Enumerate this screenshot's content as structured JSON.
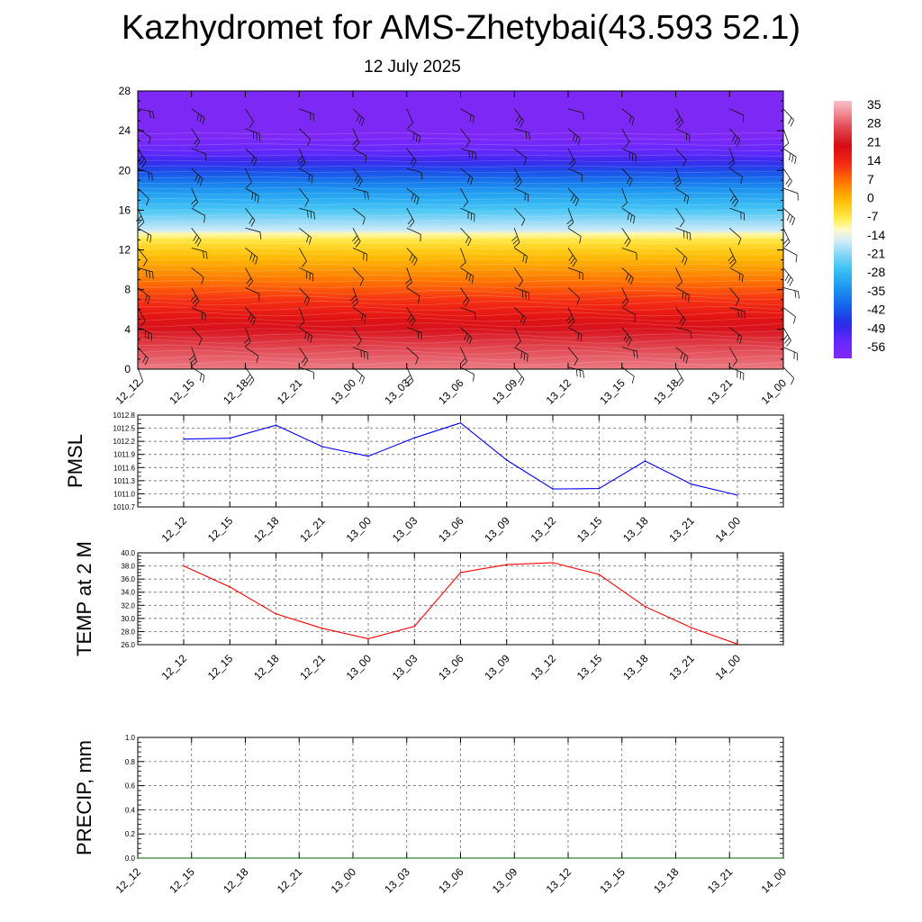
{
  "header": {
    "title": "Kazhydromet for AMS-Zhetybai(43.593 52.1)",
    "date": "12 July 2025"
  },
  "chart_data": [
    {
      "id": "cross-section",
      "type": "heatmap",
      "title": "Kazhydromet for AMS-Zhetybai(43.593 52.1)",
      "subtitle": "12 July 2025",
      "x_tick_labels": [
        "12_12",
        "12_15",
        "12_18",
        "12_21",
        "13_00",
        "13_03",
        "13_06",
        "13_09",
        "13_12",
        "13_15",
        "13_18",
        "13_21",
        "14_00"
      ],
      "y_ticks": [
        0,
        4,
        8,
        12,
        16,
        20,
        24,
        28
      ],
      "ylim": [
        0,
        28
      ],
      "colorbar": {
        "labels": [
          "35",
          "28",
          "21",
          "14",
          "7",
          "0",
          "-7",
          "-14",
          "-21",
          "-28",
          "-35",
          "-42",
          "-49",
          "-56"
        ],
        "range": [
          -60,
          38
        ]
      },
      "temperature_profile": [
        {
          "level": 0,
          "value": 32
        },
        {
          "level": 1,
          "value": 30
        },
        {
          "level": 2,
          "value": 28
        },
        {
          "level": 3,
          "value": 25
        },
        {
          "level": 4,
          "value": 22
        },
        {
          "level": 5,
          "value": 19
        },
        {
          "level": 6,
          "value": 16
        },
        {
          "level": 7,
          "value": 13
        },
        {
          "level": 8,
          "value": 10
        },
        {
          "level": 9,
          "value": 7
        },
        {
          "level": 10,
          "value": 4
        },
        {
          "level": 11,
          "value": 1
        },
        {
          "level": 12,
          "value": -2
        },
        {
          "level": 13,
          "value": -6
        },
        {
          "level": 13.6,
          "value": -10
        },
        {
          "level": 14,
          "value": -16
        },
        {
          "level": 15,
          "value": -20
        },
        {
          "level": 16,
          "value": -25
        },
        {
          "level": 17,
          "value": -29
        },
        {
          "level": 18,
          "value": -33
        },
        {
          "level": 19,
          "value": -38
        },
        {
          "level": 20,
          "value": -43
        },
        {
          "level": 21,
          "value": -49
        },
        {
          "level": 21.6,
          "value": -52
        },
        {
          "level": 22.5,
          "value": -56
        },
        {
          "level": 23.5,
          "value": -59
        },
        {
          "level": 28,
          "value": -59
        }
      ],
      "wind_barbs": "shown"
    },
    {
      "id": "pmsl",
      "type": "line",
      "ylabel": "PMSL",
      "categories": [
        "12_12",
        "12_15",
        "12_18",
        "12_21",
        "13_00",
        "13_03",
        "13_06",
        "13_09",
        "13_12",
        "13_15",
        "13_18",
        "13_21",
        "14_00"
      ],
      "values": [
        1012.25,
        1012.27,
        1012.57,
        1012.08,
        1011.86,
        1012.28,
        1012.62,
        1011.77,
        1011.11,
        1011.12,
        1011.75,
        1011.22,
        1010.97
      ],
      "ylim": [
        1010.7,
        1012.8
      ],
      "y_tick_labels": [
        "1012.8",
        "1012.5",
        "1012.2",
        "1011.9",
        "1011.6",
        "1011.3",
        "1011.0",
        "1010.7"
      ],
      "color": "#0000ff",
      "grid": true
    },
    {
      "id": "temp2m",
      "type": "line",
      "ylabel": "TEMP at 2 M",
      "categories": [
        "12_12",
        "12_15",
        "12_18",
        "12_21",
        "13_00",
        "13_03",
        "13_06",
        "13_09",
        "13_12",
        "13_15",
        "13_18",
        "13_21",
        "14_00"
      ],
      "values": [
        38.0,
        34.8,
        30.7,
        28.5,
        26.9,
        28.8,
        37.0,
        38.2,
        38.5,
        36.7,
        31.8,
        28.6,
        26.1
      ],
      "ylim": [
        26.0,
        40.0
      ],
      "y_tick_labels": [
        "40.0",
        "38.0",
        "36.0",
        "34.0",
        "32.0",
        "30.0",
        "28.0",
        "26.0"
      ],
      "color": "#ff0000",
      "grid": true
    },
    {
      "id": "precip",
      "type": "line",
      "ylabel": "PRECIP, mm",
      "x_tick_labels": [
        "12_12",
        "12_15",
        "12_18",
        "12_21",
        "13_00",
        "13_03",
        "13_06",
        "13_09",
        "13_12",
        "13_15",
        "13_18",
        "13_21",
        "14_00"
      ],
      "values": [
        0,
        0,
        0,
        0,
        0,
        0,
        0,
        0,
        0,
        0,
        0,
        0,
        0
      ],
      "ylim": [
        0.0,
        1.0
      ],
      "y_tick_labels": [
        "1.0",
        "0.8",
        "0.6",
        "0.4",
        "0.2",
        "0.0"
      ],
      "color": "#006400",
      "grid": true
    }
  ]
}
